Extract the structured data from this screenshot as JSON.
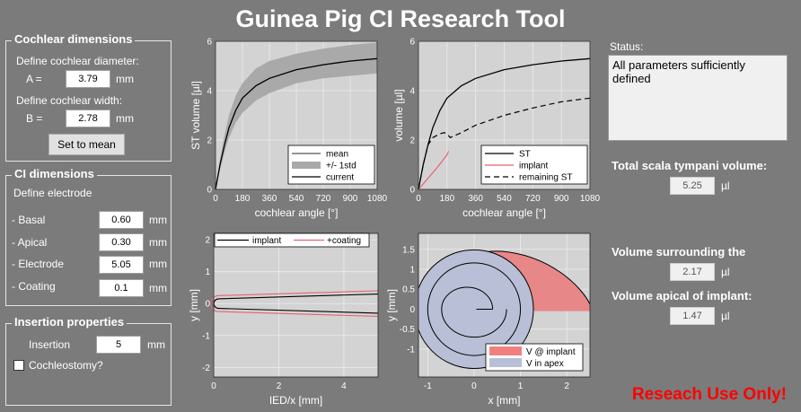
{
  "title": "Guinea Pig CI Research Tool",
  "cochlear": {
    "legend": "Cochlear dimensions",
    "diameter_label": "Define cochlear diameter:",
    "a_label": "A =",
    "a_value": "3.79",
    "a_unit": "mm",
    "width_label": "Define cochlear width:",
    "b_label": "B =",
    "b_value": "2.78",
    "b_unit": "mm",
    "mean_button": "Set to mean"
  },
  "ci": {
    "legend": "CI dimensions",
    "define_label": "Define electrode",
    "basal_label": "- Basal",
    "basal_value": "0.60",
    "apical_label": "- Apical",
    "apical_value": "0.30",
    "electrode_label": "- Electrode",
    "electrode_value": "5.05",
    "coating_label": "- Coating",
    "coating_value": "0.1",
    "unit": "mm"
  },
  "insertion": {
    "legend": "Insertion properties",
    "insertion_label": "Insertion",
    "insertion_value": "5",
    "unit": "mm",
    "cochleostomy_label": "Cochleostomy?",
    "cochleostomy_checked": false
  },
  "status": {
    "label": "Status:",
    "message": "All parameters sufficiently defined"
  },
  "results": {
    "total_label": "Total scala tympani volume:",
    "total_value": "5.25",
    "surround_label": "Volume surrounding the",
    "surround_value": "2.17",
    "apical_label": "Volume apical of implant:",
    "apical_value": "1.47",
    "unit": "µl"
  },
  "warning": "Reseach Use Only!",
  "chart_data": [
    {
      "type": "line",
      "xlabel": "cochlear angle [°]",
      "ylabel": "ST volume [µl]",
      "xlim": [
        0,
        1080
      ],
      "ylim": [
        0,
        6
      ],
      "xticks": [
        "0",
        "180",
        "360",
        "540",
        "720",
        "900",
        "1080"
      ],
      "yticks": [
        "0",
        "2",
        "4",
        "6"
      ],
      "legend_position": "bottom-right",
      "legend": [
        "mean",
        "+/- 1std",
        "current"
      ],
      "series": [
        {
          "name": "mean",
          "x": [
            0,
            30,
            60,
            90,
            135,
            180,
            270,
            360,
            540,
            720,
            900,
            1080
          ],
          "y": [
            0,
            1.0,
            1.8,
            2.5,
            3.2,
            3.7,
            4.2,
            4.5,
            4.85,
            5.05,
            5.2,
            5.3
          ]
        },
        {
          "name": "+/- 1std",
          "x": [
            0,
            30,
            60,
            90,
            135,
            180,
            270,
            360,
            540,
            720,
            900,
            1080
          ],
          "y_lower": [
            0,
            0.8,
            1.5,
            2.1,
            2.7,
            3.1,
            3.6,
            3.9,
            4.3,
            4.5,
            4.6,
            4.7
          ],
          "y_upper": [
            0,
            1.2,
            2.2,
            3.0,
            3.8,
            4.3,
            4.9,
            5.2,
            5.5,
            5.7,
            5.85,
            5.95
          ]
        },
        {
          "name": "current",
          "x": [
            0,
            30,
            60,
            90,
            135,
            180,
            270,
            360,
            540,
            720,
            900,
            1080
          ],
          "y": [
            0,
            1.0,
            1.8,
            2.5,
            3.2,
            3.7,
            4.2,
            4.5,
            4.85,
            5.05,
            5.2,
            5.3
          ]
        }
      ]
    },
    {
      "type": "line",
      "xlabel": "cochlear angle [°]",
      "ylabel": "volume [µl]",
      "xlim": [
        0,
        1080
      ],
      "ylim": [
        0,
        6
      ],
      "xticks": [
        "0",
        "180",
        "360",
        "540",
        "720",
        "900",
        "1080"
      ],
      "yticks": [
        "0",
        "2",
        "4",
        "6"
      ],
      "legend_position": "bottom-right",
      "legend": [
        "ST",
        "implant",
        "remaining ST"
      ],
      "series": [
        {
          "name": "ST",
          "x": [
            0,
            30,
            60,
            90,
            135,
            180,
            270,
            360,
            540,
            720,
            900,
            1080
          ],
          "y": [
            0,
            1.0,
            1.8,
            2.5,
            3.2,
            3.7,
            4.2,
            4.5,
            4.85,
            5.05,
            5.2,
            5.3
          ]
        },
        {
          "name": "implant",
          "x": [
            0,
            60,
            120,
            180,
            190
          ],
          "y": [
            0,
            0.45,
            0.9,
            1.4,
            1.55
          ]
        },
        {
          "name": "remaining ST",
          "x": [
            0,
            30,
            60,
            90,
            135,
            160,
            180,
            200,
            270,
            360,
            540,
            720,
            900,
            1080
          ],
          "y": [
            0,
            1.0,
            1.8,
            2.1,
            2.25,
            2.3,
            2.25,
            2.1,
            2.3,
            2.6,
            3.0,
            3.3,
            3.55,
            3.7
          ]
        }
      ]
    },
    {
      "type": "line",
      "xlabel": "IED/x [mm]",
      "ylabel": "y [mm]",
      "xlim": [
        0,
        5.05
      ],
      "ylim": [
        -2.3,
        2.2
      ],
      "xticks": [
        "0",
        "2",
        "4"
      ],
      "yticks": [
        "-2",
        "-1",
        "0",
        "1",
        "2"
      ],
      "legend_position": "top",
      "legend": [
        "implant",
        "+coating"
      ],
      "series": [
        {
          "name": "implant",
          "x": [
            0,
            5.05
          ],
          "y_half_width": [
            0.15,
            0.3
          ]
        },
        {
          "name": "+coating",
          "x": [
            0,
            5.05
          ],
          "y_half_width": [
            0.25,
            0.4
          ]
        }
      ]
    },
    {
      "type": "area",
      "xlabel": "x [mm]",
      "ylabel": "y [mm]",
      "xlim": [
        -1.2,
        2.5
      ],
      "ylim": [
        -1.7,
        1.9
      ],
      "xticks": [
        "-1",
        "0",
        "1",
        "2"
      ],
      "yticks": [
        "-1",
        "-0.5",
        "0",
        "0.5",
        "1",
        "1.5"
      ],
      "legend_position": "bottom-right",
      "legend": [
        "V @ implant",
        "V in apex"
      ],
      "series": [
        {
          "name": "V @ implant",
          "color": "#f08080"
        },
        {
          "name": "V in apex",
          "color": "#b8bfd6"
        }
      ]
    }
  ]
}
